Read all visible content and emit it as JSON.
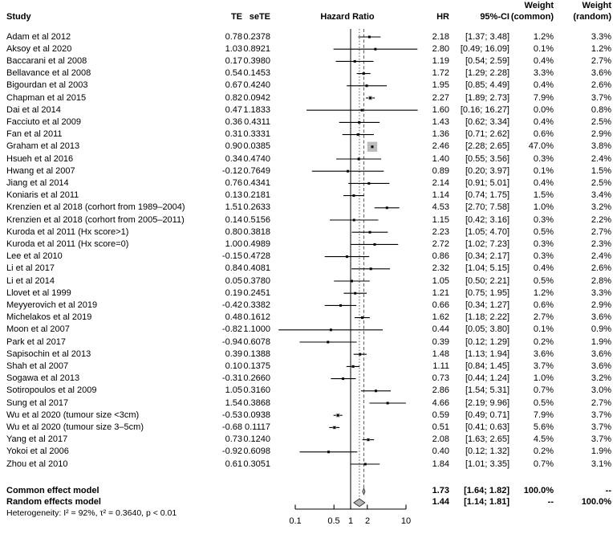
{
  "figure": {
    "header": {
      "study": "Study",
      "te": "TE",
      "sete": "seTE",
      "hazard_ratio": "Hazard Ratio",
      "hr": "HR",
      "ci": "95%-CI",
      "weight": "Weight",
      "common": "(common)",
      "random": "(random)"
    },
    "heterogeneity": "Heterogeneity: I² = 92%, τ² = 0.3640, p < 0.01"
  },
  "chart_data": {
    "type": "forest",
    "x_scale": "log",
    "xlim": [
      0.05,
      16.5
    ],
    "axis_ticks": [
      "0.1",
      "0.5",
      "1",
      "2",
      "10"
    ],
    "ref_lines": {
      "null_line": 1.0,
      "common_effect": 1.73,
      "random_effect": 1.44
    },
    "studies": [
      {
        "name": "Adam et al 2012",
        "te": "0.78",
        "sete": "0.2378",
        "hr": "2.18",
        "ci": "[1.37; 3.48]",
        "weight_common": "1.2%",
        "weight_random": "3.3%"
      },
      {
        "name": "Aksoy et al 2020",
        "te": "1.03",
        "sete": "0.8921",
        "hr": "2.80",
        "ci": "[0.49; 16.09]",
        "weight_common": "0.1%",
        "weight_random": "1.2%"
      },
      {
        "name": "Baccarani et al 2008",
        "te": "0.17",
        "sete": "0.3980",
        "hr": "1.19",
        "ci": "[0.54; 2.59]",
        "weight_common": "0.4%",
        "weight_random": "2.7%"
      },
      {
        "name": "Bellavance et al 2008",
        "te": "0.54",
        "sete": "0.1453",
        "hr": "1.72",
        "ci": "[1.29; 2.28]",
        "weight_common": "3.3%",
        "weight_random": "3.6%"
      },
      {
        "name": "Bigourdan et al 2003",
        "te": "0.67",
        "sete": "0.4240",
        "hr": "1.95",
        "ci": "[0.85; 4.49]",
        "weight_common": "0.4%",
        "weight_random": "2.6%"
      },
      {
        "name": "Chapman et al 2015",
        "te": "0.82",
        "sete": "0.0942",
        "hr": "2.27",
        "ci": "[1.89; 2.73]",
        "weight_common": "7.9%",
        "weight_random": "3.7%"
      },
      {
        "name": "Dai et al 2014",
        "te": "0.47",
        "sete": "1.1833",
        "hr": "1.60",
        "ci": "[0.16; 16.27]",
        "weight_common": "0.0%",
        "weight_random": "0.8%"
      },
      {
        "name": "Facciuto et al 2009",
        "te": "0.36",
        "sete": "0.4311",
        "hr": "1.43",
        "ci": "[0.62; 3.34]",
        "weight_common": "0.4%",
        "weight_random": "2.5%"
      },
      {
        "name": "Fan et al 2011",
        "te": "0.31",
        "sete": "0.3331",
        "hr": "1.36",
        "ci": "[0.71; 2.62]",
        "weight_common": "0.6%",
        "weight_random": "2.9%"
      },
      {
        "name": "Graham et al 2013",
        "te": "0.90",
        "sete": "0.0385",
        "hr": "2.46",
        "ci": "[2.28; 2.65]",
        "weight_common": "47.0%",
        "weight_random": "3.8%"
      },
      {
        "name": "Hsueh et al 2016",
        "te": "0.34",
        "sete": "0.4740",
        "hr": "1.40",
        "ci": "[0.55; 3.56]",
        "weight_common": "0.3%",
        "weight_random": "2.4%"
      },
      {
        "name": "Hwang et al 2007",
        "te": "-0.12",
        "sete": "0.7649",
        "hr": "0.89",
        "ci": "[0.20; 3.97]",
        "weight_common": "0.1%",
        "weight_random": "1.5%"
      },
      {
        "name": "Jiang et al 2014",
        "te": "0.76",
        "sete": "0.4341",
        "hr": "2.14",
        "ci": "[0.91; 5.01]",
        "weight_common": "0.4%",
        "weight_random": "2.5%"
      },
      {
        "name": "Koniaris et al 2011",
        "te": "0.13",
        "sete": "0.2181",
        "hr": "1.14",
        "ci": "[0.74; 1.75]",
        "weight_common": "1.5%",
        "weight_random": "3.4%"
      },
      {
        "name": "Krenzien et al 2018 (corhort from 1989–2004)",
        "te": "1.51",
        "sete": "0.2633",
        "hr": "4.53",
        "ci": "[2.70; 7.58]",
        "weight_common": "1.0%",
        "weight_random": "3.2%"
      },
      {
        "name": "Krenzien et al 2018 (corhort from 2005–2011)",
        "te": "0.14",
        "sete": "0.5156",
        "hr": "1.15",
        "ci": "[0.42; 3.16]",
        "weight_common": "0.3%",
        "weight_random": "2.2%"
      },
      {
        "name": "Kuroda et al 2011 (Hx score>1)",
        "te": "0.80",
        "sete": "0.3818",
        "hr": "2.23",
        "ci": "[1.05; 4.70]",
        "weight_common": "0.5%",
        "weight_random": "2.7%"
      },
      {
        "name": "Kuroda et al 2011 (Hx score=0)",
        "te": "1.00",
        "sete": "0.4989",
        "hr": "2.72",
        "ci": "[1.02; 7.23]",
        "weight_common": "0.3%",
        "weight_random": "2.3%"
      },
      {
        "name": "Lee et al 2010",
        "te": "-0.15",
        "sete": "0.4728",
        "hr": "0.86",
        "ci": "[0.34; 2.17]",
        "weight_common": "0.3%",
        "weight_random": "2.4%"
      },
      {
        "name": "Li et al 2017",
        "te": "0.84",
        "sete": "0.4081",
        "hr": "2.32",
        "ci": "[1.04; 5.15]",
        "weight_common": "0.4%",
        "weight_random": "2.6%"
      },
      {
        "name": "Li et al 2014",
        "te": "0.05",
        "sete": "0.3780",
        "hr": "1.05",
        "ci": "[0.50; 2.21]",
        "weight_common": "0.5%",
        "weight_random": "2.8%"
      },
      {
        "name": "Llovet et al 1999",
        "te": "0.19",
        "sete": "0.2451",
        "hr": "1.21",
        "ci": "[0.75; 1.95]",
        "weight_common": "1.2%",
        "weight_random": "3.3%"
      },
      {
        "name": "Meyyerovich et al 2019",
        "te": "-0.42",
        "sete": "0.3382",
        "hr": "0.66",
        "ci": "[0.34; 1.27]",
        "weight_common": "0.6%",
        "weight_random": "2.9%"
      },
      {
        "name": "Michelakos et al 2019",
        "te": "0.48",
        "sete": "0.1612",
        "hr": "1.62",
        "ci": "[1.18; 2.22]",
        "weight_common": "2.7%",
        "weight_random": "3.6%"
      },
      {
        "name": "Moon et al 2007",
        "te": "-0.82",
        "sete": "1.1000",
        "hr": "0.44",
        "ci": "[0.05; 3.80]",
        "weight_common": "0.1%",
        "weight_random": "0.9%"
      },
      {
        "name": "Park et al 2017",
        "te": "-0.94",
        "sete": "0.6078",
        "hr": "0.39",
        "ci": "[0.12; 1.29]",
        "weight_common": "0.2%",
        "weight_random": "1.9%"
      },
      {
        "name": "Sapisochin et al 2013",
        "te": "0.39",
        "sete": "0.1388",
        "hr": "1.48",
        "ci": "[1.13; 1.94]",
        "weight_common": "3.6%",
        "weight_random": "3.6%"
      },
      {
        "name": "Shah et al 2007",
        "te": "0.10",
        "sete": "0.1375",
        "hr": "1.11",
        "ci": "[0.84; 1.45]",
        "weight_common": "3.7%",
        "weight_random": "3.6%"
      },
      {
        "name": "Sogawa et al 2013",
        "te": "-0.31",
        "sete": "0.2660",
        "hr": "0.73",
        "ci": "[0.44; 1.24]",
        "weight_common": "1.0%",
        "weight_random": "3.2%"
      },
      {
        "name": "Sotiropoulos et al 2009",
        "te": "1.05",
        "sete": "0.3160",
        "hr": "2.86",
        "ci": "[1.54; 5.31]",
        "weight_common": "0.7%",
        "weight_random": "3.0%"
      },
      {
        "name": "Sung et al 2017",
        "te": "1.54",
        "sete": "0.3868",
        "hr": "4.66",
        "ci": "[2.19; 9.96]",
        "weight_common": "0.5%",
        "weight_random": "2.7%"
      },
      {
        "name": "Wu et al 2020 (tumour size <3cm)",
        "te": "-0.53",
        "sete": "0.0938",
        "hr": "0.59",
        "ci": "[0.49; 0.71]",
        "weight_common": "7.9%",
        "weight_random": "3.7%"
      },
      {
        "name": "Wu et al 2020 (tumour size 3–5cm)",
        "te": "-0.68",
        "sete": "0.1117",
        "hr": "0.51",
        "ci": "[0.41; 0.63]",
        "weight_common": "5.6%",
        "weight_random": "3.7%"
      },
      {
        "name": "Yang et al 2017",
        "te": "0.73",
        "sete": "0.1240",
        "hr": "2.08",
        "ci": "[1.63; 2.65]",
        "weight_common": "4.5%",
        "weight_random": "3.7%"
      },
      {
        "name": "Yokoi et al 2006",
        "te": "-0.92",
        "sete": "0.6098",
        "hr": "0.40",
        "ci": "[0.12; 1.32]",
        "weight_common": "0.2%",
        "weight_random": "1.9%"
      },
      {
        "name": "Zhou et al 2010",
        "te": "0.61",
        "sete": "0.3051",
        "hr": "1.84",
        "ci": "[1.01; 3.35]",
        "weight_common": "0.7%",
        "weight_random": "3.1%"
      }
    ],
    "summaries": [
      {
        "label": "Common effect model",
        "hr": "1.73",
        "ci": "[1.64; 1.82]",
        "weight_common": "100.0%",
        "weight_random": "--"
      },
      {
        "label": "Random effects model",
        "hr": "1.44",
        "ci": "[1.14; 1.81]",
        "weight_common": "--",
        "weight_random": "100.0%"
      }
    ]
  }
}
